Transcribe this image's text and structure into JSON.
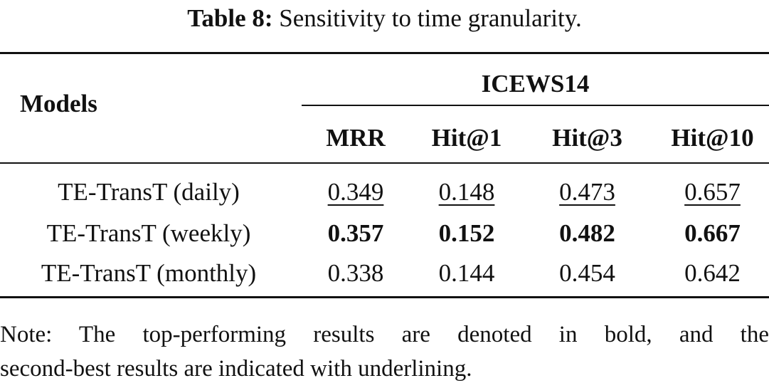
{
  "caption": {
    "label": "Table 8:",
    "text": "Sensitivity to time granularity."
  },
  "table": {
    "models_header": "Models",
    "group_header": "ICEWS14",
    "columns": [
      "MRR",
      "Hit@1",
      "Hit@3",
      "Hit@10"
    ],
    "rows": [
      {
        "model": "TE-TransT (daily)",
        "values": [
          "0.349",
          "0.148",
          "0.473",
          "0.657"
        ],
        "style": "underline"
      },
      {
        "model": "TE-TransT (weekly)",
        "values": [
          "0.357",
          "0.152",
          "0.482",
          "0.667"
        ],
        "style": "bold"
      },
      {
        "model": "TE-TransT (monthly)",
        "values": [
          "0.338",
          "0.144",
          "0.454",
          "0.642"
        ],
        "style": "normal"
      }
    ]
  },
  "note": {
    "line1": "Note: The top-performing results are denoted in bold, and the",
    "line2": "second-best results are indicated with underlining."
  }
}
